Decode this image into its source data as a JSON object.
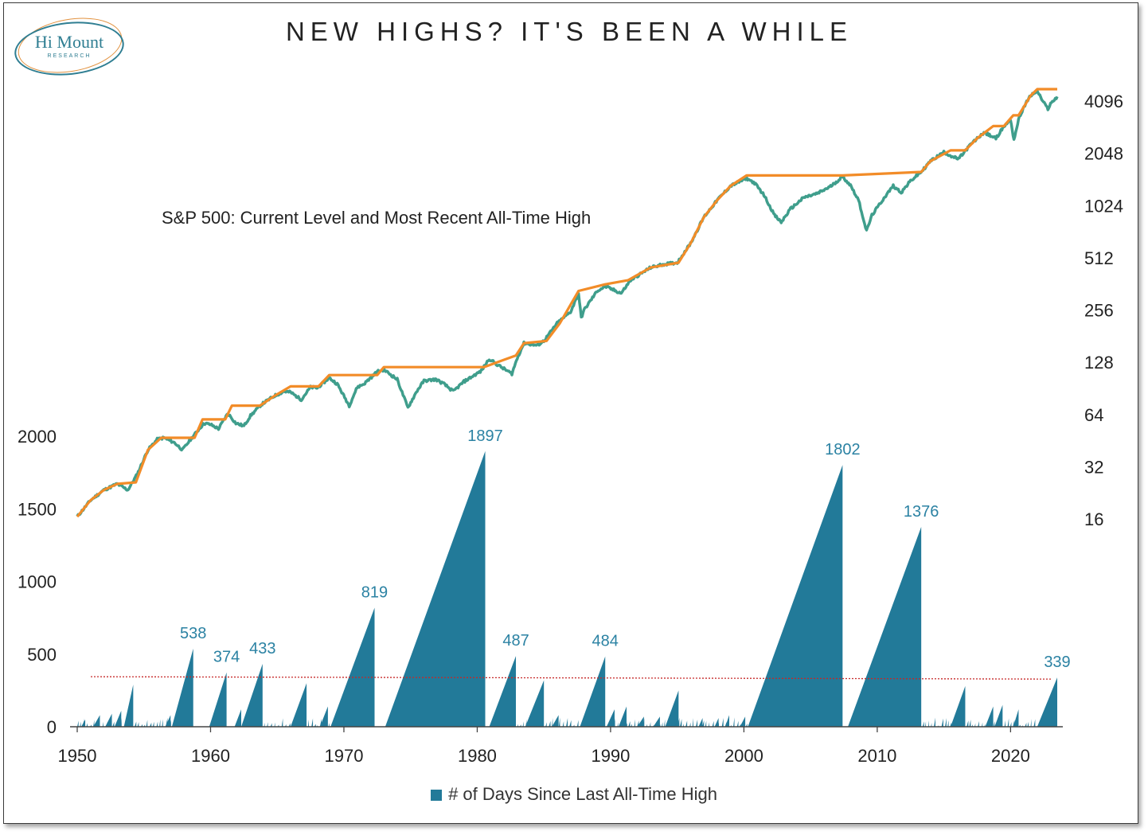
{
  "logo": {
    "name": "Hi Mount",
    "sub": "RESEARCH"
  },
  "title": "NEW HIGHS? IT'S BEEN A WHILE",
  "chart_data": [
    {
      "type": "area",
      "name": "days_since_ath",
      "legend": "# of Days Since Last All-Time High",
      "xlim": [
        1950,
        2023.5
      ],
      "ylim": [
        0,
        2000
      ],
      "x_ticks": [
        1950,
        1960,
        1970,
        1980,
        1990,
        2000,
        2010,
        2020
      ],
      "y_ticks": [
        0,
        500,
        1000,
        1500,
        2000
      ],
      "threshold": 339,
      "color": "#227a99",
      "threshold_color": "#c62828",
      "peaks": [
        {
          "start": 1950.3,
          "end": 1950.6,
          "value": 50
        },
        {
          "start": 1951.2,
          "end": 1951.7,
          "value": 80
        },
        {
          "start": 1952.1,
          "end": 1952.6,
          "value": 90
        },
        {
          "start": 1952.8,
          "end": 1953.3,
          "value": 110
        },
        {
          "start": 1953.5,
          "end": 1954.2,
          "value": 290
        },
        {
          "start": 1956.6,
          "end": 1957.0,
          "value": 80
        },
        {
          "start": 1957.1,
          "end": 1958.7,
          "value": 538
        },
        {
          "start": 1959.9,
          "end": 1961.2,
          "value": 374
        },
        {
          "start": 1961.8,
          "end": 1962.3,
          "value": 120
        },
        {
          "start": 1962.3,
          "end": 1963.9,
          "value": 433
        },
        {
          "start": 1966.0,
          "end": 1967.2,
          "value": 300
        },
        {
          "start": 1968.2,
          "end": 1968.8,
          "value": 140
        },
        {
          "start": 1969.0,
          "end": 1972.3,
          "value": 819
        },
        {
          "start": 1973.1,
          "end": 1980.6,
          "value": 1897
        },
        {
          "start": 1980.9,
          "end": 1982.9,
          "value": 487
        },
        {
          "start": 1983.6,
          "end": 1985.0,
          "value": 320
        },
        {
          "start": 1985.6,
          "end": 1986.1,
          "value": 80
        },
        {
          "start": 1987.7,
          "end": 1989.6,
          "value": 484
        },
        {
          "start": 1989.7,
          "end": 1990.3,
          "value": 120
        },
        {
          "start": 1990.6,
          "end": 1991.2,
          "value": 140
        },
        {
          "start": 1992.0,
          "end": 1992.5,
          "value": 70
        },
        {
          "start": 1993.2,
          "end": 1993.7,
          "value": 70
        },
        {
          "start": 1994.1,
          "end": 1995.1,
          "value": 250
        },
        {
          "start": 1996.6,
          "end": 1996.9,
          "value": 60
        },
        {
          "start": 1997.8,
          "end": 1998.1,
          "value": 60
        },
        {
          "start": 1998.6,
          "end": 1998.9,
          "value": 80
        },
        {
          "start": 1999.7,
          "end": 2000.1,
          "value": 70
        },
        {
          "start": 2000.3,
          "end": 2007.4,
          "value": 1802
        },
        {
          "start": 2007.8,
          "end": 2013.3,
          "value": 1376
        },
        {
          "start": 2015.5,
          "end": 2016.6,
          "value": 280
        },
        {
          "start": 2018.1,
          "end": 2018.7,
          "value": 140
        },
        {
          "start": 2018.8,
          "end": 2019.4,
          "value": 150
        },
        {
          "start": 2020.2,
          "end": 2020.6,
          "value": 120
        },
        {
          "start": 2022.0,
          "end": 2023.5,
          "value": 339
        }
      ],
      "labels": [
        {
          "x": 1958.7,
          "value": 538,
          "text": "538"
        },
        {
          "x": 1961.2,
          "value": 374,
          "text": "374"
        },
        {
          "x": 1963.9,
          "value": 433,
          "text": "433"
        },
        {
          "x": 1972.3,
          "value": 819,
          "text": "819"
        },
        {
          "x": 1980.6,
          "value": 1897,
          "text": "1897"
        },
        {
          "x": 1982.9,
          "value": 487,
          "text": "487"
        },
        {
          "x": 1989.6,
          "value": 484,
          "text": "484"
        },
        {
          "x": 2007.4,
          "value": 1802,
          "text": "1802"
        },
        {
          "x": 2013.3,
          "value": 1376,
          "text": "1376"
        },
        {
          "x": 2023.5,
          "value": 339,
          "text": "339"
        }
      ]
    },
    {
      "type": "line",
      "name": "sp500_log",
      "label": "S&P 500: Current Level and Most Recent All-Time High",
      "scale": "log2",
      "xlim": [
        1950,
        2023.5
      ],
      "y_ticks": [
        16,
        32,
        64,
        128,
        256,
        512,
        1024,
        2048,
        4096
      ],
      "series": [
        {
          "color": "#3f9e8c",
          "x": [
            1950.0,
            1951.0,
            1952.0,
            1953.0,
            1953.8,
            1954.5,
            1955.3,
            1956.0,
            1956.5,
            1957.3,
            1957.9,
            1958.5,
            1959.5,
            1960.0,
            1960.6,
            1961.3,
            1961.9,
            1962.5,
            1963.0,
            1963.8,
            1964.8,
            1965.5,
            1966.0,
            1966.8,
            1967.5,
            1968.0,
            1968.9,
            1969.5,
            1970.4,
            1971.0,
            1971.5,
            1972.5,
            1973.0,
            1974.0,
            1974.8,
            1975.5,
            1976.0,
            1976.9,
            1977.5,
            1978.2,
            1979.0,
            1980.3,
            1980.9,
            1981.5,
            1982.6,
            1983.0,
            1983.5,
            1984.5,
            1985.0,
            1986.0,
            1987.0,
            1987.6,
            1987.8,
            1988.0,
            1989.0,
            1989.6,
            1990.8,
            1991.5,
            1993.0,
            1994.0,
            1995.0,
            1996.0,
            1997.0,
            1998.0,
            1999.0,
            2000.2,
            2000.8,
            2001.5,
            2002.3,
            2002.8,
            2003.5,
            2004.5,
            2005.5,
            2006.5,
            2007.4,
            2008.0,
            2008.6,
            2009.2,
            2009.6,
            2010.5,
            2011.2,
            2011.8,
            2012.5,
            2013.3,
            2014.0,
            2015.0,
            2015.7,
            2016.1,
            2017.0,
            2018.0,
            2018.9,
            2019.5,
            2020.0,
            2020.25,
            2020.6,
            2021.0,
            2021.5,
            2022.0,
            2022.4,
            2022.8,
            2023.0,
            2023.5
          ],
          "y": [
            16.5,
            20.5,
            23.5,
            25.5,
            23.5,
            29,
            40,
            46,
            47,
            44,
            40,
            46,
            57,
            56,
            53,
            65,
            57,
            55,
            63,
            73,
            82,
            87,
            86,
            78,
            92,
            91,
            104,
            96,
            72,
            92,
            96,
            113,
            116,
            102,
            70,
            88,
            100,
            102,
            96,
            87,
            99,
            114,
            134,
            124,
            110,
            135,
            165,
            160,
            170,
            215,
            250,
            320,
            230,
            255,
            330,
            350,
            320,
            380,
            450,
            470,
            480,
            620,
            880,
            1100,
            1330,
            1470,
            1380,
            1180,
            900,
            820,
            980,
            1140,
            1200,
            1320,
            1500,
            1340,
            1100,
            730,
            900,
            1130,
            1330,
            1220,
            1420,
            1600,
            1850,
            2080,
            1950,
            1900,
            2300,
            2700,
            2500,
            2930,
            3200,
            2450,
            3200,
            3800,
            4400,
            4700,
            4100,
            3700,
            3950,
            4350
          ]
        },
        {
          "color": "#f28c28",
          "label": "Most Recent All-Time High",
          "x": [
            1950.0,
            1951.0,
            1952.0,
            1953.0,
            1954.4,
            1955.3,
            1956.3,
            1958.8,
            1959.4,
            1961.1,
            1961.6,
            1963.7,
            1964.8,
            1966.0,
            1968.1,
            1968.9,
            1972.5,
            1973.0,
            1980.5,
            1982.9,
            1983.5,
            1985.2,
            1986.2,
            1987.6,
            1989.6,
            1991.3,
            1993.0,
            1995.1,
            1996.0,
            1997.0,
            1998.0,
            1999.0,
            2000.2,
            2007.4,
            2013.3,
            2014.0,
            2015.5,
            2016.6,
            2017.5,
            2018.7,
            2019.5,
            2020.2,
            2020.6,
            2021.0,
            2021.5,
            2022.0,
            2023.5
          ],
          "y": [
            16.5,
            20.5,
            23.5,
            25.5,
            26,
            40,
            47,
            47,
            60,
            60,
            72,
            72,
            82,
            93,
            93,
            108,
            108,
            120,
            120,
            140,
            165,
            170,
            215,
            330,
            360,
            380,
            450,
            480,
            620,
            880,
            1100,
            1330,
            1527,
            1527,
            1600,
            1850,
            2130,
            2130,
            2500,
            2940,
            2940,
            3390,
            3390,
            3800,
            4400,
            4800,
            4800
          ]
        }
      ]
    }
  ]
}
